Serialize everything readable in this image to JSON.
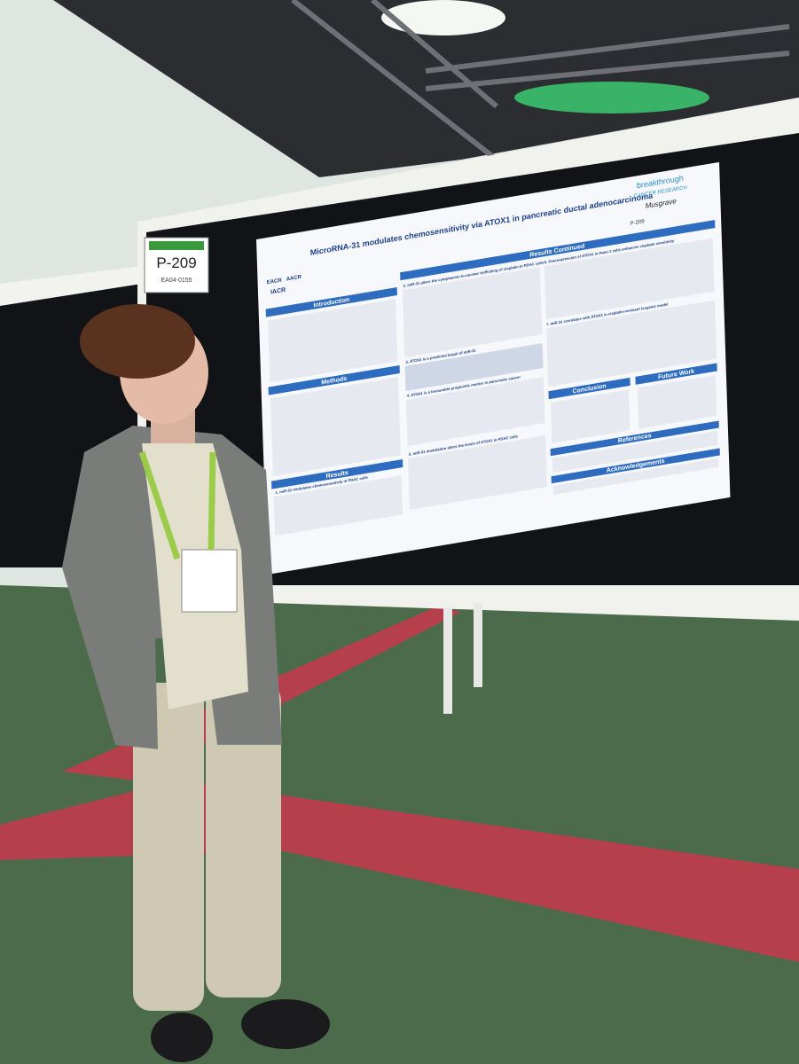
{
  "board": {
    "number": "P-209",
    "code": "EA04-0155"
  },
  "poster": {
    "title": "MicroRNA-31 modulates chemosensitivity via ATOX1 in pancreatic ductal adenocarcinoma",
    "number": "P-209",
    "sponsor": [
      "breakthrough",
      "CANCER RESEARCH",
      "Musgrave"
    ],
    "logos": [
      "EACR",
      "AACR",
      "IACR"
    ],
    "sections": [
      "Introduction",
      "Methods",
      "Results",
      "Results Continued",
      "Conclusion",
      "Future Work",
      "References",
      "Acknowledgements"
    ],
    "subheadings": [
      "1. miR-31 modulates chemosensitivity in PDAC cells",
      "2. miR-31 alters the cytoplasmic-to-nuclear trafficking of cisplatin in PDAC cells",
      "3. ATOX1 is a predicted target of miR-31",
      "4. ATOX1 is a favourable prognostic marker in pancreatic cancer",
      "5. miR-31 modulation alters the levels of ATOX1 in PDAC cells",
      "6. Overexpression of ATOX1 in Panc-1 cells enhances cisplatin sensitivity",
      "7. miR-31 correlates with ATOX1 in cisplatin-resistant isogenic model"
    ]
  }
}
